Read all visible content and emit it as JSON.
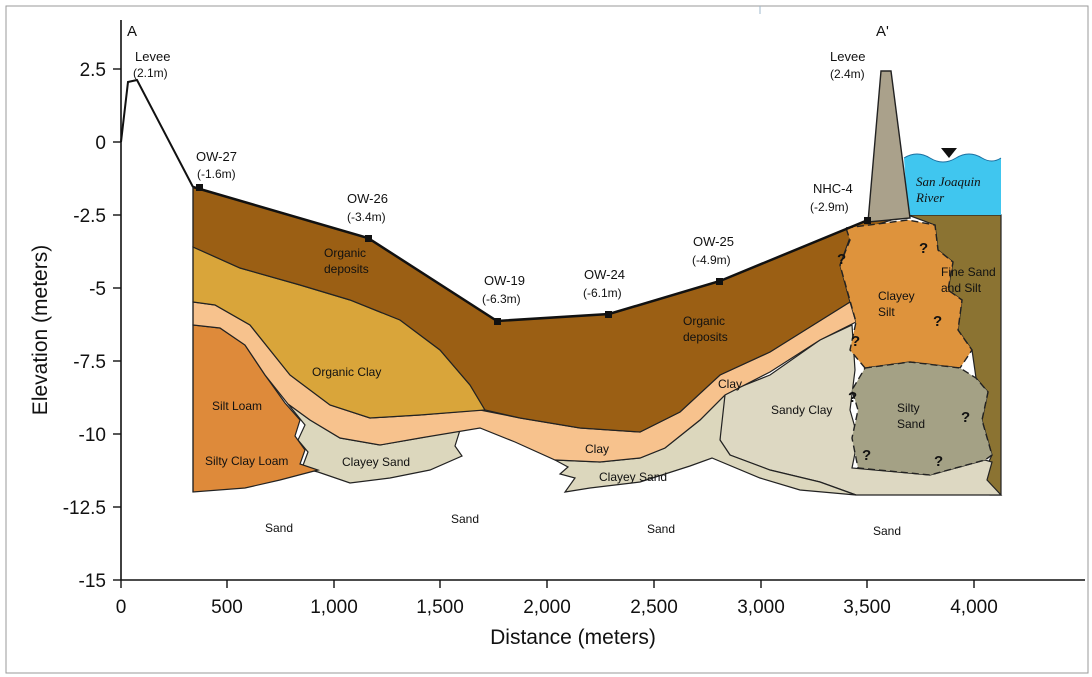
{
  "section_labels": {
    "start": "A",
    "end": "A'"
  },
  "axes": {
    "x_label": "Distance (meters)",
    "y_label": "Elevation (meters)",
    "x_ticks": [
      "0",
      "500",
      "1,000",
      "1,500",
      "2,000",
      "2,500",
      "3,000",
      "3,500",
      "4,000"
    ],
    "y_ticks": [
      "2.5",
      "0",
      "-2.5",
      "-5",
      "-7.5",
      "-10",
      "-12.5",
      "-15"
    ]
  },
  "wells": [
    {
      "name": "Levee",
      "elev": "(2.1m)",
      "distance_m": 40,
      "elevation_m": 2.1
    },
    {
      "name": "OW-27",
      "elev": "(-1.6m)",
      "distance_m": 370,
      "elevation_m": -1.6
    },
    {
      "name": "OW-26",
      "elev": "(-3.4m)",
      "distance_m": 1150,
      "elevation_m": -3.4
    },
    {
      "name": "OW-19",
      "elev": "(-6.3m)",
      "distance_m": 1760,
      "elevation_m": -6.3
    },
    {
      "name": "OW-24",
      "elev": "(-6.1m)",
      "distance_m": 2280,
      "elevation_m": -6.1
    },
    {
      "name": "OW-25",
      "elev": "(-4.9m)",
      "distance_m": 2800,
      "elevation_m": -4.9
    },
    {
      "name": "NHC-4",
      "elev": "(-2.9m)",
      "distance_m": 3490,
      "elevation_m": -2.9
    },
    {
      "name": "Levee",
      "elev": "(2.4m)",
      "distance_m": 3570,
      "elevation_m": 2.4
    }
  ],
  "units": {
    "organic_deposits_1": "Organic\ndeposits",
    "organic_deposits_2": "Organic\ndeposits",
    "organic_clay": "Organic Clay",
    "silt_loam": "Silt Loam",
    "silty_clay_loam": "Silty Clay Loam",
    "clayey_sand_1": "Clayey Sand",
    "clayey_sand_2": "Clayey Sand",
    "clay_1": "Clay",
    "clay_2": "Clay",
    "sandy_clay": "Sandy Clay",
    "clayey_silt": "Clayey\nSilt",
    "silty_sand": "Silty\nSand",
    "fine_sand_silt": "Fine Sand\nand Silt",
    "sand": "Sand"
  },
  "river": {
    "name": "San Joaquin\nRiver"
  },
  "uncertain_mark": "?",
  "colors": {
    "organic_deposits": "#9b5f14",
    "organic_clay": "#d9a53a",
    "clay": "#f7c28d",
    "silt_loam": "#de8a3a",
    "clayey_sand": "#dcd7bd",
    "sandy_clay": "#ddd8c2",
    "clayey_silt": "#de933c",
    "silty_sand": "#a4a185",
    "fine_sand_silt": "#8b7332",
    "levee": "#aaa18b",
    "water": "#40c6ef"
  }
}
